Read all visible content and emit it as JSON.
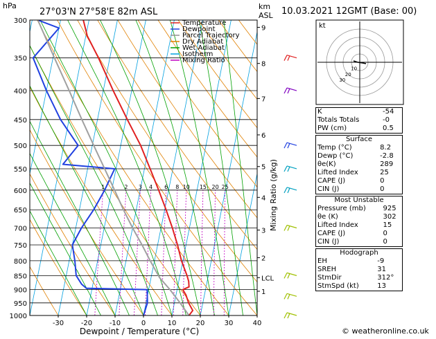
{
  "header": {
    "hpa_label": "hPa",
    "location": "27°03'N  27°58'E  82m  ASL",
    "km_label": "km",
    "asl_label": "ASL",
    "datetime": "10.03.2021  12GMT  (Base: 00)"
  },
  "legend": [
    {
      "label": "Temperature",
      "color": "#e02020"
    },
    {
      "label": "Dewpoint",
      "color": "#2040e0"
    },
    {
      "label": "Parcel Trajectory",
      "color": "#909090"
    },
    {
      "label": "Dry Adiabat",
      "color": "#e08000"
    },
    {
      "label": "Wet Adiabat",
      "color": "#00a000"
    },
    {
      "label": "Isotherm",
      "color": "#00a0e0"
    },
    {
      "label": "Mixing Ratio",
      "color": "#c000c0"
    }
  ],
  "chart_data": {
    "type": "skew-t",
    "xlabel": "Dewpoint / Temperature (°C)",
    "y2label": "Mixing Ratio (g/kg)",
    "pressure_levels": [
      300,
      350,
      400,
      450,
      500,
      550,
      600,
      650,
      700,
      750,
      800,
      850,
      900,
      950,
      1000
    ],
    "pressure_tick_labels": [
      "300",
      "350",
      "400",
      "450",
      "500",
      "550",
      "600",
      "650",
      "700",
      "750",
      "800",
      "850",
      "900",
      "950",
      "1000"
    ],
    "temperature_ticks": [
      -30,
      -20,
      -10,
      0,
      10,
      20,
      30,
      40
    ],
    "temperature_tick_labels": [
      "-30",
      "-20",
      "-10",
      "0",
      "10",
      "20",
      "30",
      "40"
    ],
    "xlim": [
      -40,
      40
    ],
    "ylim": [
      1000,
      300
    ],
    "height_km": [
      {
        "label": "9",
        "p": 309
      },
      {
        "label": "8",
        "p": 358
      },
      {
        "label": "7",
        "p": 413
      },
      {
        "label": "6",
        "p": 479
      },
      {
        "label": "5",
        "p": 545
      },
      {
        "label": "4",
        "p": 618
      },
      {
        "label": "3",
        "p": 706
      },
      {
        "label": "2",
        "p": 790
      },
      {
        "label": "LCL",
        "p": 857
      },
      {
        "label": "1",
        "p": 906
      }
    ],
    "mixing_ratio_labels": [
      "1",
      "2",
      "3",
      "4",
      "6",
      "8",
      "10",
      "15",
      "20",
      "25"
    ],
    "mixing_ratio_values": [
      1,
      2,
      3,
      4,
      6,
      8,
      10,
      15,
      20,
      25
    ],
    "series": [
      {
        "name": "Temperature",
        "points": [
          [
            1000,
            16
          ],
          [
            980,
            17
          ],
          [
            950,
            15
          ],
          [
            920,
            13.5
          ],
          [
            900,
            12
          ],
          [
            890,
            14
          ],
          [
            870,
            13.5
          ],
          [
            850,
            12.5
          ],
          [
            800,
            9.5
          ],
          [
            750,
            7
          ],
          [
            700,
            4
          ],
          [
            650,
            0.5
          ],
          [
            600,
            -3.5
          ],
          [
            550,
            -8
          ],
          [
            500,
            -13
          ],
          [
            450,
            -19.5
          ],
          [
            400,
            -26.5
          ],
          [
            350,
            -34
          ],
          [
            320,
            -39.5
          ],
          [
            300,
            -42
          ]
        ]
      },
      {
        "name": "Dewpoint",
        "points": [
          [
            1000,
            0
          ],
          [
            950,
            0.5
          ],
          [
            900,
            -0.5
          ],
          [
            895,
            -22
          ],
          [
            880,
            -24
          ],
          [
            850,
            -26.5
          ],
          [
            800,
            -28
          ],
          [
            750,
            -30
          ],
          [
            700,
            -28
          ],
          [
            650,
            -25
          ],
          [
            600,
            -22.5
          ],
          [
            550,
            -20.5
          ],
          [
            540,
            -39
          ],
          [
            500,
            -35
          ],
          [
            450,
            -43
          ],
          [
            400,
            -50
          ],
          [
            350,
            -57
          ],
          [
            310,
            -50
          ],
          [
            300,
            -58
          ]
        ]
      },
      {
        "name": "Parcel Trajectory",
        "points": [
          [
            1000,
            16
          ],
          [
            950,
            12
          ],
          [
            900,
            7.5
          ],
          [
            857,
            3
          ],
          [
            800,
            -1.5
          ],
          [
            750,
            -5.5
          ],
          [
            700,
            -10
          ],
          [
            650,
            -14.5
          ],
          [
            600,
            -19
          ],
          [
            550,
            -24
          ],
          [
            500,
            -29.5
          ],
          [
            450,
            -35.5
          ],
          [
            400,
            -42
          ],
          [
            350,
            -49.5
          ],
          [
            300,
            -58
          ]
        ]
      }
    ]
  },
  "hodograph": {
    "unit_label": "kt",
    "ring_labels": [
      "10",
      "20",
      "30"
    ]
  },
  "indices": {
    "rows": [
      {
        "label": "K",
        "value": "-54"
      },
      {
        "label": "Totals Totals",
        "value": "-0"
      },
      {
        "label": "PW (cm)",
        "value": "0.5"
      }
    ]
  },
  "surface": {
    "title": "Surface",
    "rows": [
      {
        "label": "Temp (°C)",
        "value": "8.2"
      },
      {
        "label": "Dewp (°C)",
        "value": "-2.8"
      },
      {
        "label": "θe(K)",
        "value": "289"
      },
      {
        "label": "Lifted Index",
        "value": "25"
      },
      {
        "label": "CAPE (J)",
        "value": "0"
      },
      {
        "label": "CIN (J)",
        "value": "0"
      }
    ]
  },
  "most_unstable": {
    "title": "Most Unstable",
    "rows": [
      {
        "label": "Pressure (mb)",
        "value": "925"
      },
      {
        "label": "θe (K)",
        "value": "302"
      },
      {
        "label": "Lifted Index",
        "value": "15"
      },
      {
        "label": "CAPE (J)",
        "value": "0"
      },
      {
        "label": "CIN (J)",
        "value": "0"
      }
    ]
  },
  "hodograph_params": {
    "title": "Hodograph",
    "rows": [
      {
        "label": "EH",
        "value": "-9"
      },
      {
        "label": "SREH",
        "value": "31"
      },
      {
        "label": "StmDir",
        "value": "312°"
      },
      {
        "label": "StmSpd (kt)",
        "value": "13"
      }
    ]
  },
  "footer": {
    "credit": "© weatheronline.co.uk"
  }
}
